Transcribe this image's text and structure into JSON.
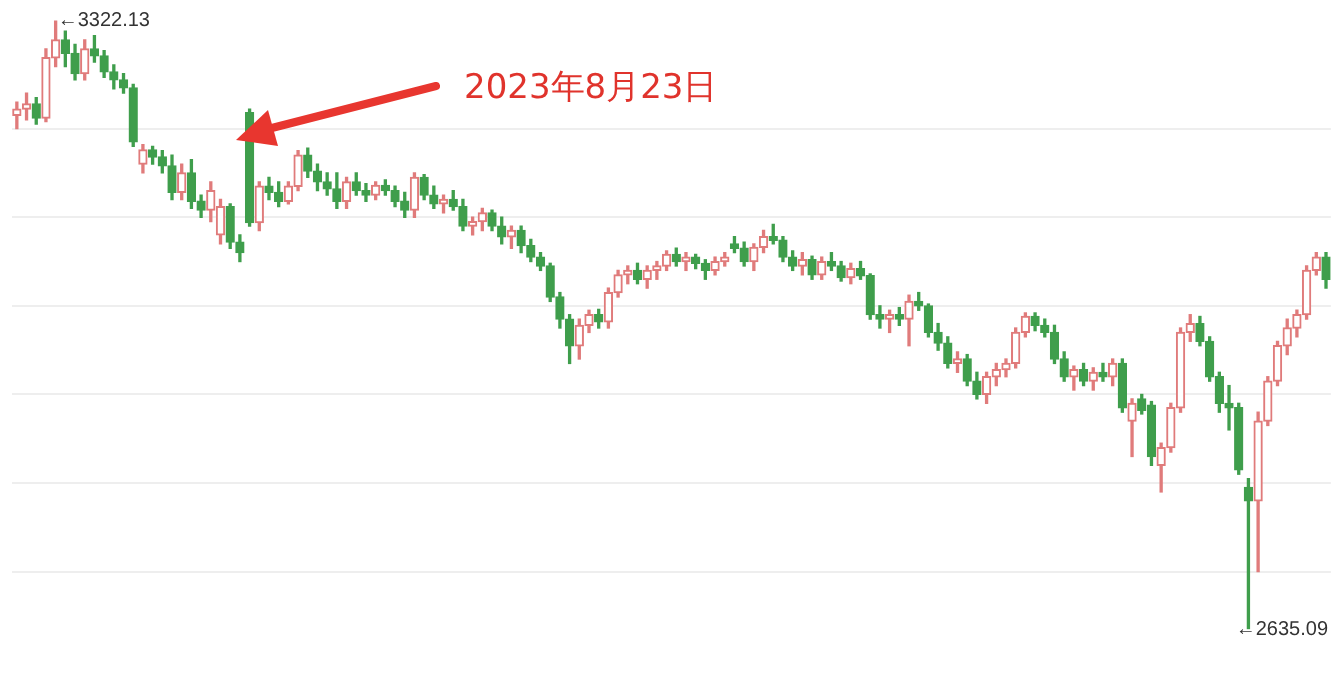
{
  "chart_data": {
    "type": "candlestick",
    "categories": [
      null,
      null,
      null,
      null,
      null,
      null,
      null,
      null,
      null,
      null,
      null,
      null,
      null,
      null,
      null,
      null,
      null,
      null,
      null,
      null,
      null,
      null,
      null,
      null,
      null,
      null,
      null,
      null,
      null,
      null,
      null,
      null,
      null,
      null,
      null,
      null,
      null,
      null,
      null,
      null,
      null,
      null,
      null,
      null,
      null,
      null,
      null,
      null,
      null,
      null,
      null,
      null,
      null,
      null,
      null,
      null,
      null,
      null,
      null,
      null,
      null,
      null,
      null,
      null,
      null,
      null,
      null,
      null,
      null,
      null,
      null,
      null,
      null,
      null,
      null,
      null,
      null,
      null,
      null,
      null,
      null,
      null,
      null,
      null,
      null,
      null,
      null,
      null,
      null,
      null,
      null,
      null,
      null,
      null,
      null,
      null,
      null,
      null,
      null,
      null,
      null,
      null,
      null,
      null,
      null,
      null,
      null,
      null,
      null,
      null,
      null,
      null,
      null,
      null,
      null,
      null,
      null,
      null,
      null,
      null,
      null,
      null,
      null,
      null,
      null,
      null,
      null,
      null,
      null,
      null,
      null,
      null,
      null,
      null,
      null,
      null
    ],
    "ohlc": [
      [
        3215,
        3230,
        3200,
        3222
      ],
      [
        3222,
        3240,
        3210,
        3228
      ],
      [
        3228,
        3235,
        3205,
        3212
      ],
      [
        3212,
        3290,
        3208,
        3280
      ],
      [
        3280,
        3322.13,
        3270,
        3300
      ],
      [
        3300,
        3310,
        3270,
        3285
      ],
      [
        3285,
        3295,
        3255,
        3262
      ],
      [
        3262,
        3300,
        3255,
        3290
      ],
      [
        3290,
        3305,
        3275,
        3282
      ],
      [
        3282,
        3288,
        3258,
        3264
      ],
      [
        3264,
        3272,
        3245,
        3255
      ],
      [
        3255,
        3262,
        3240,
        3246
      ],
      [
        3246,
        3250,
        3180,
        3185
      ],
      [
        3160,
        3182,
        3150,
        3176
      ],
      [
        3176,
        3180,
        3160,
        3168
      ],
      [
        3168,
        3175,
        3150,
        3158
      ],
      [
        3158,
        3170,
        3120,
        3128
      ],
      [
        3128,
        3160,
        3120,
        3150
      ],
      [
        3150,
        3165,
        3110,
        3118
      ],
      [
        3118,
        3125,
        3100,
        3108
      ],
      [
        3108,
        3140,
        3095,
        3130
      ],
      [
        3080,
        3120,
        3070,
        3112
      ],
      [
        3112,
        3115,
        3065,
        3072
      ],
      [
        3072,
        3080,
        3050,
        3060
      ],
      [
        3218,
        3222,
        3090,
        3094
      ],
      [
        3094,
        3140,
        3085,
        3135
      ],
      [
        3135,
        3145,
        3120,
        3128
      ],
      [
        3128,
        3140,
        3112,
        3118
      ],
      [
        3118,
        3140,
        3115,
        3135
      ],
      [
        3135,
        3175,
        3130,
        3170
      ],
      [
        3170,
        3178,
        3145,
        3152
      ],
      [
        3152,
        3160,
        3130,
        3140
      ],
      [
        3140,
        3150,
        3125,
        3132
      ],
      [
        3132,
        3150,
        3110,
        3118
      ],
      [
        3118,
        3145,
        3110,
        3140
      ],
      [
        3140,
        3150,
        3125,
        3130
      ],
      [
        3130,
        3138,
        3118,
        3125
      ],
      [
        3125,
        3140,
        3120,
        3136
      ],
      [
        3136,
        3142,
        3125,
        3130
      ],
      [
        3130,
        3135,
        3112,
        3118
      ],
      [
        3118,
        3128,
        3100,
        3108
      ],
      [
        3108,
        3150,
        3100,
        3145
      ],
      [
        3145,
        3148,
        3120,
        3125
      ],
      [
        3125,
        3135,
        3110,
        3115
      ],
      [
        3115,
        3125,
        3105,
        3120
      ],
      [
        3120,
        3130,
        3108,
        3112
      ],
      [
        3112,
        3120,
        3085,
        3090
      ],
      [
        3090,
        3100,
        3080,
        3095
      ],
      [
        3095,
        3110,
        3085,
        3105
      ],
      [
        3105,
        3108,
        3085,
        3090
      ],
      [
        3090,
        3100,
        3070,
        3078
      ],
      [
        3078,
        3090,
        3065,
        3085
      ],
      [
        3085,
        3090,
        3060,
        3068
      ],
      [
        3068,
        3075,
        3050,
        3055
      ],
      [
        3055,
        3060,
        3040,
        3045
      ],
      [
        3045,
        3048,
        3005,
        3010
      ],
      [
        3010,
        3015,
        2975,
        2985
      ],
      [
        2985,
        2990,
        2935,
        2955
      ],
      [
        2955,
        2985,
        2940,
        2978
      ],
      [
        2978,
        2995,
        2970,
        2990
      ],
      [
        2990,
        2996,
        2975,
        2982
      ],
      [
        2982,
        3020,
        2975,
        3015
      ],
      [
        3015,
        3040,
        3010,
        3035
      ],
      [
        3035,
        3045,
        3025,
        3040
      ],
      [
        3040,
        3048,
        3025,
        3030
      ],
      [
        3030,
        3045,
        3020,
        3040
      ],
      [
        3040,
        3050,
        3030,
        3045
      ],
      [
        3045,
        3062,
        3040,
        3058
      ],
      [
        3058,
        3065,
        3045,
        3050
      ],
      [
        3050,
        3060,
        3040,
        3055
      ],
      [
        3055,
        3058,
        3042,
        3048
      ],
      [
        3048,
        3052,
        3030,
        3040
      ],
      [
        3040,
        3055,
        3035,
        3050
      ],
      [
        3050,
        3060,
        3045,
        3055
      ],
      [
        3070,
        3078,
        3060,
        3065
      ],
      [
        3065,
        3072,
        3045,
        3050
      ],
      [
        3050,
        3070,
        3040,
        3066
      ],
      [
        3066,
        3085,
        3060,
        3078
      ],
      [
        3078,
        3092,
        3070,
        3074
      ],
      [
        3074,
        3078,
        3050,
        3055
      ],
      [
        3055,
        3062,
        3040,
        3045
      ],
      [
        3045,
        3060,
        3035,
        3052
      ],
      [
        3052,
        3056,
        3030,
        3035
      ],
      [
        3035,
        3055,
        3030,
        3050
      ],
      [
        3050,
        3060,
        3040,
        3045
      ],
      [
        3045,
        3050,
        3028,
        3032
      ],
      [
        3032,
        3048,
        3025,
        3042
      ],
      [
        3042,
        3050,
        3030,
        3034
      ],
      [
        3034,
        3036,
        2985,
        2990
      ],
      [
        2990,
        3000,
        2975,
        2985
      ],
      [
        2985,
        2995,
        2970,
        2990
      ],
      [
        2990,
        2998,
        2978,
        2985
      ],
      [
        2985,
        3012,
        2955,
        3005
      ],
      [
        3005,
        3015,
        2995,
        3000
      ],
      [
        3000,
        3002,
        2965,
        2970
      ],
      [
        2970,
        2980,
        2950,
        2958
      ],
      [
        2958,
        2965,
        2930,
        2935
      ],
      [
        2935,
        2948,
        2925,
        2940
      ],
      [
        2940,
        2945,
        2910,
        2915
      ],
      [
        2915,
        2925,
        2895,
        2900
      ],
      [
        2900,
        2925,
        2890,
        2920
      ],
      [
        2920,
        2935,
        2910,
        2928
      ],
      [
        2928,
        2940,
        2920,
        2935
      ],
      [
        2935,
        2975,
        2930,
        2970
      ],
      [
        2970,
        2992,
        2965,
        2988
      ],
      [
        2988,
        2992,
        2972,
        2978
      ],
      [
        2978,
        2985,
        2965,
        2970
      ],
      [
        2970,
        2978,
        2935,
        2940
      ],
      [
        2940,
        2948,
        2915,
        2920
      ],
      [
        2920,
        2932,
        2905,
        2928
      ],
      [
        2928,
        2935,
        2910,
        2915
      ],
      [
        2915,
        2930,
        2905,
        2925
      ],
      [
        2925,
        2935,
        2915,
        2920
      ],
      [
        2920,
        2940,
        2910,
        2935
      ],
      [
        2935,
        2940,
        2880,
        2885
      ],
      [
        2870,
        2895,
        2830,
        2890
      ],
      [
        2895,
        2900,
        2878,
        2882
      ],
      [
        2888,
        2892,
        2820,
        2830
      ],
      [
        2820,
        2845,
        2790,
        2840
      ],
      [
        2840,
        2890,
        2835,
        2885
      ],
      [
        2885,
        2975,
        2880,
        2970
      ],
      [
        2970,
        2990,
        2960,
        2980
      ],
      [
        2980,
        2988,
        2955,
        2960
      ],
      [
        2960,
        2965,
        2915,
        2920
      ],
      [
        2920,
        2925,
        2880,
        2890
      ],
      [
        2890,
        2910,
        2860,
        2885
      ],
      [
        2885,
        2890,
        2810,
        2815
      ],
      [
        2795,
        2805,
        2635.09,
        2780
      ],
      [
        2780,
        2880,
        2700,
        2870
      ],
      [
        2870,
        2920,
        2865,
        2915
      ],
      [
        2915,
        2960,
        2910,
        2955
      ],
      [
        2955,
        2985,
        2945,
        2975
      ],
      [
        2975,
        2995,
        2965,
        2990
      ],
      [
        2990,
        3045,
        2985,
        3040
      ],
      [
        3040,
        3060,
        3035,
        3055
      ],
      [
        3055,
        3060,
        3020,
        3030
      ]
    ],
    "yticks": [
      {
        "value": 3200,
        "label": null
      },
      {
        "value": 3100,
        "label": null
      },
      {
        "value": 3000,
        "label": null
      },
      {
        "value": 2900,
        "label": null
      },
      {
        "value": 2800,
        "label": null
      },
      {
        "value": 2700,
        "label": null
      }
    ],
    "grid": "y",
    "annotations": [
      "2023年8月23日",
      "←3322.13",
      "←2635.09"
    ]
  }
}
